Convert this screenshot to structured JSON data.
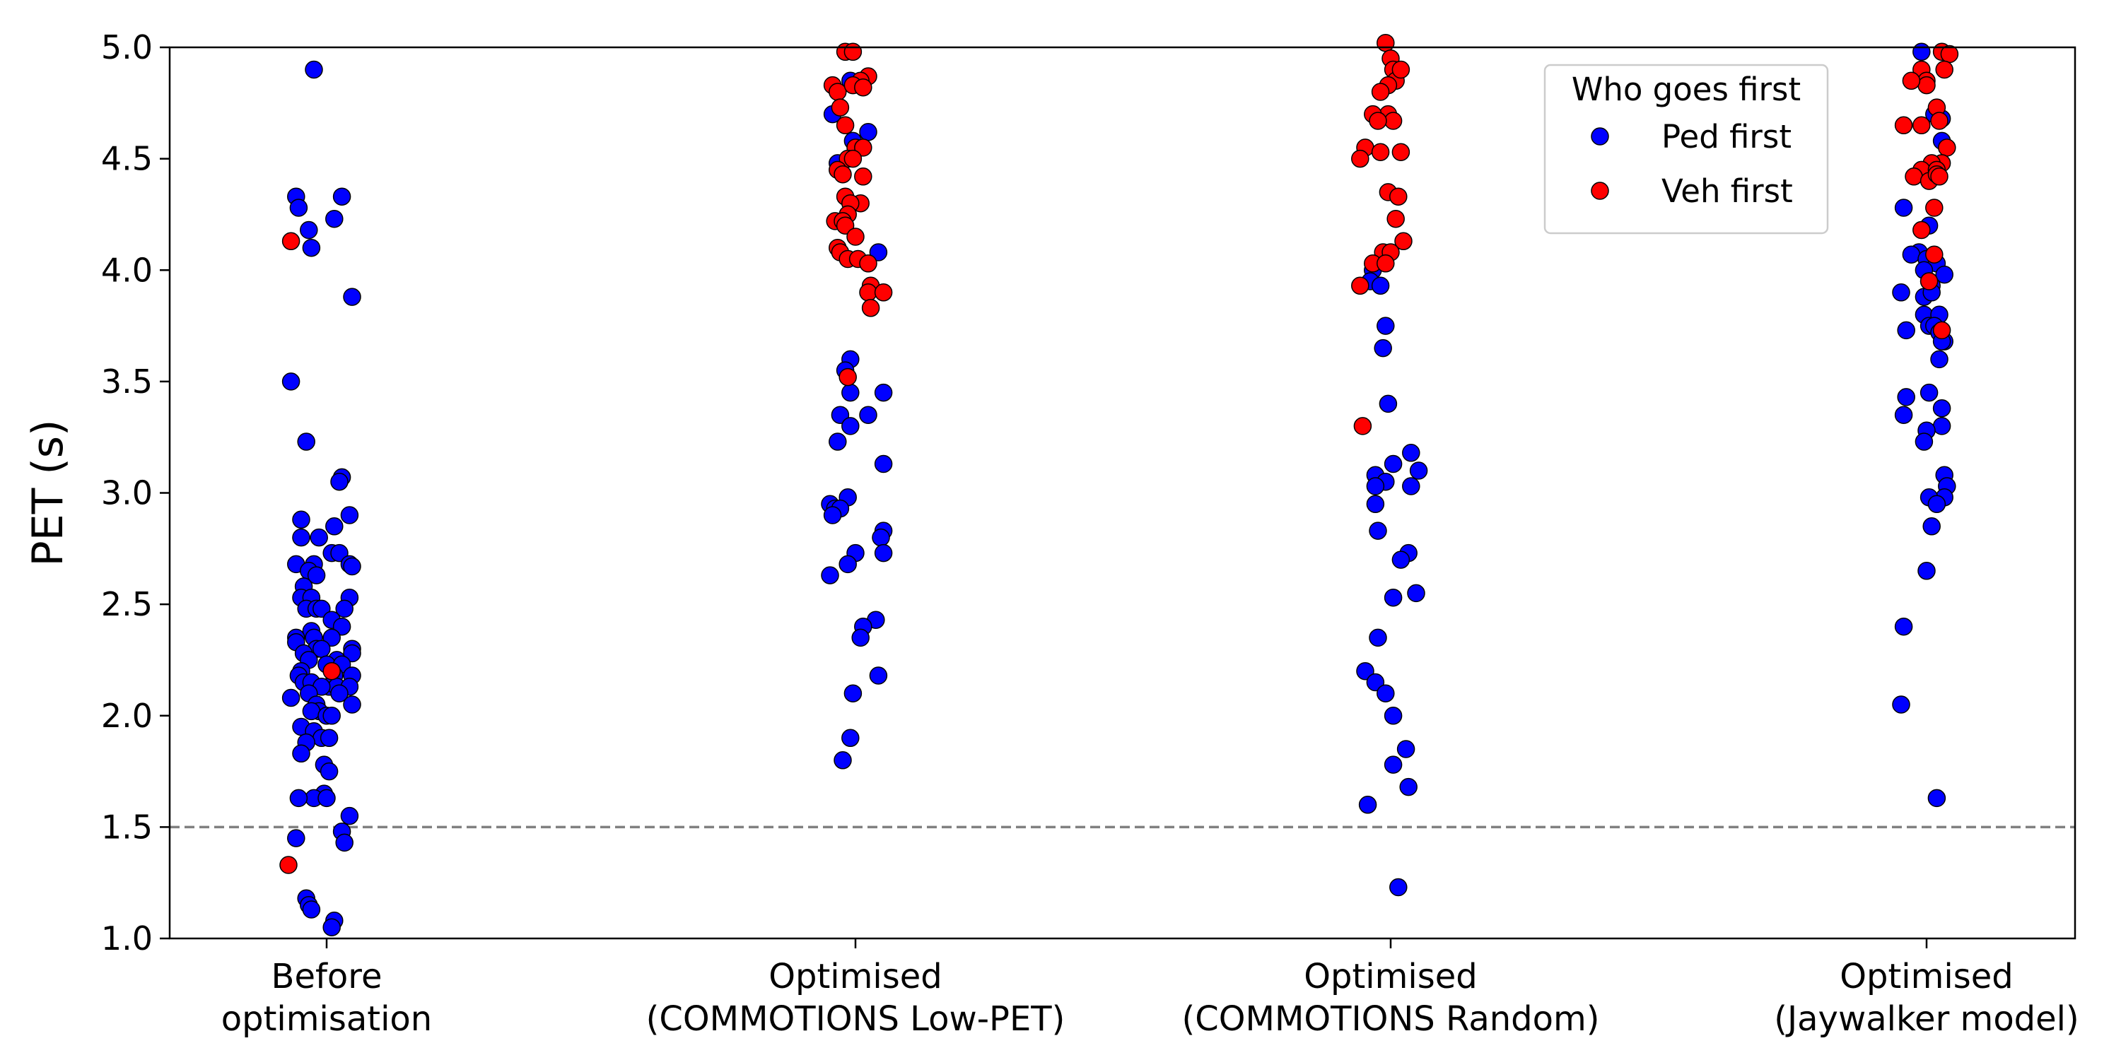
{
  "chart_data": {
    "type": "scatter",
    "title": "",
    "xlabel": "",
    "ylabel": "PET (s)",
    "ylim": [
      1.0,
      5.0
    ],
    "yticks": [
      1.0,
      1.5,
      2.0,
      2.5,
      3.0,
      3.5,
      4.0,
      4.5,
      5.0
    ],
    "ytick_labels": [
      "1.0",
      "1.5",
      "2.0",
      "2.5",
      "3.0",
      "3.5",
      "4.0",
      "4.5",
      "5.0"
    ],
    "categories": [
      [
        "Before",
        "optimisation"
      ],
      [
        "Optimised",
        "(COMMOTIONS Low-PET)"
      ],
      [
        "Optimised",
        "(COMMOTIONS Random)"
      ],
      [
        "Optimised",
        "(Jaywalker model)"
      ]
    ],
    "reference_line": {
      "y": 1.5,
      "style": "dashed",
      "color": "#808080"
    },
    "legend": {
      "title": "Who goes first",
      "position": "top-right",
      "entries": [
        {
          "name": "Ped first",
          "color": "#0000ff"
        },
        {
          "name": "Veh first",
          "color": "#ff0000"
        }
      ]
    },
    "series": [
      {
        "name": "Ped first",
        "color": "#0000ff",
        "points": [
          [
            -0.05,
            4.9
          ],
          [
            -0.12,
            4.33
          ],
          [
            -0.11,
            4.28
          ],
          [
            -0.07,
            4.18
          ],
          [
            -0.06,
            4.1
          ],
          [
            0.03,
            4.23
          ],
          [
            0.06,
            4.33
          ],
          [
            0.1,
            3.88
          ],
          [
            -0.14,
            3.5
          ],
          [
            -0.08,
            3.23
          ],
          [
            0.06,
            3.07
          ],
          [
            0.05,
            3.05
          ],
          [
            0.09,
            2.9
          ],
          [
            -0.1,
            2.88
          ],
          [
            0.03,
            2.85
          ],
          [
            -0.1,
            2.8
          ],
          [
            -0.03,
            2.8
          ],
          [
            0.02,
            2.73
          ],
          [
            0.05,
            2.73
          ],
          [
            -0.12,
            2.68
          ],
          [
            -0.05,
            2.68
          ],
          [
            0.09,
            2.68
          ],
          [
            0.1,
            2.67
          ],
          [
            -0.07,
            2.65
          ],
          [
            -0.04,
            2.63
          ],
          [
            -0.09,
            2.58
          ],
          [
            -0.1,
            2.53
          ],
          [
            -0.06,
            2.53
          ],
          [
            0.09,
            2.53
          ],
          [
            -0.08,
            2.48
          ],
          [
            -0.04,
            2.48
          ],
          [
            -0.02,
            2.48
          ],
          [
            0.07,
            2.48
          ],
          [
            0.02,
            2.43
          ],
          [
            0.06,
            2.4
          ],
          [
            -0.06,
            2.38
          ],
          [
            -0.05,
            2.35
          ],
          [
            -0.12,
            2.35
          ],
          [
            0.02,
            2.35
          ],
          [
            -0.12,
            2.33
          ],
          [
            -0.04,
            2.3
          ],
          [
            -0.02,
            2.3
          ],
          [
            0.1,
            2.3
          ],
          [
            -0.09,
            2.28
          ],
          [
            0.1,
            2.28
          ],
          [
            -0.07,
            2.25
          ],
          [
            0.04,
            2.25
          ],
          [
            0.0,
            2.23
          ],
          [
            0.06,
            2.23
          ],
          [
            -0.1,
            2.2
          ],
          [
            -0.11,
            2.18
          ],
          [
            0.03,
            2.18
          ],
          [
            0.1,
            2.18
          ],
          [
            -0.09,
            2.15
          ],
          [
            -0.06,
            2.15
          ],
          [
            0.01,
            2.13
          ],
          [
            0.04,
            2.13
          ],
          [
            -0.02,
            2.13
          ],
          [
            0.09,
            2.13
          ],
          [
            -0.07,
            2.1
          ],
          [
            0.05,
            2.1
          ],
          [
            -0.14,
            2.08
          ],
          [
            -0.04,
            2.05
          ],
          [
            0.1,
            2.05
          ],
          [
            -0.03,
            2.02
          ],
          [
            -0.06,
            2.02
          ],
          [
            0.0,
            2.0
          ],
          [
            0.02,
            2.0
          ],
          [
            -0.1,
            1.95
          ],
          [
            -0.05,
            1.93
          ],
          [
            -0.02,
            1.9
          ],
          [
            0.01,
            1.9
          ],
          [
            -0.08,
            1.88
          ],
          [
            -0.1,
            1.83
          ],
          [
            -0.01,
            1.78
          ],
          [
            0.01,
            1.75
          ],
          [
            -0.01,
            1.65
          ],
          [
            -0.05,
            1.63
          ],
          [
            -0.11,
            1.63
          ],
          [
            0.0,
            1.63
          ],
          [
            0.09,
            1.55
          ],
          [
            0.06,
            1.48
          ],
          [
            0.07,
            1.43
          ],
          [
            -0.12,
            1.45
          ],
          [
            -0.08,
            1.18
          ],
          [
            -0.07,
            1.15
          ],
          [
            -0.06,
            1.13
          ],
          [
            0.03,
            1.08
          ],
          [
            0.02,
            1.05
          ],
          [
            0.98,
            4.85
          ],
          [
            0.91,
            4.7
          ],
          [
            1.05,
            4.62
          ],
          [
            0.99,
            4.58
          ],
          [
            0.93,
            4.48
          ],
          [
            1.09,
            4.08
          ],
          [
            0.98,
            3.6
          ],
          [
            0.96,
            3.55
          ],
          [
            0.98,
            3.45
          ],
          [
            1.11,
            3.45
          ],
          [
            0.94,
            3.35
          ],
          [
            1.05,
            3.35
          ],
          [
            0.98,
            3.3
          ],
          [
            0.93,
            3.23
          ],
          [
            1.11,
            3.13
          ],
          [
            0.97,
            2.98
          ],
          [
            0.9,
            2.95
          ],
          [
            0.92,
            2.93
          ],
          [
            0.94,
            2.93
          ],
          [
            0.91,
            2.9
          ],
          [
            1.11,
            2.83
          ],
          [
            1.1,
            2.8
          ],
          [
            1.11,
            2.73
          ],
          [
            1.0,
            2.73
          ],
          [
            0.97,
            2.68
          ],
          [
            0.9,
            2.63
          ],
          [
            1.08,
            2.43
          ],
          [
            1.03,
            2.4
          ],
          [
            1.02,
            2.35
          ],
          [
            1.09,
            2.18
          ],
          [
            0.99,
            2.1
          ],
          [
            0.98,
            1.9
          ],
          [
            0.95,
            1.8
          ],
          [
            1.93,
            4.0
          ],
          [
            1.92,
            3.95
          ],
          [
            1.96,
            3.93
          ],
          [
            1.98,
            3.75
          ],
          [
            1.97,
            3.65
          ],
          [
            1.99,
            3.4
          ],
          [
            2.08,
            3.18
          ],
          [
            2.11,
            3.1
          ],
          [
            2.01,
            3.13
          ],
          [
            1.94,
            3.08
          ],
          [
            1.98,
            3.05
          ],
          [
            1.94,
            3.03
          ],
          [
            2.08,
            3.03
          ],
          [
            1.94,
            2.95
          ],
          [
            1.95,
            2.83
          ],
          [
            2.07,
            2.73
          ],
          [
            2.04,
            2.7
          ],
          [
            2.1,
            2.55
          ],
          [
            2.01,
            2.53
          ],
          [
            1.95,
            2.35
          ],
          [
            1.9,
            2.2
          ],
          [
            1.94,
            2.15
          ],
          [
            1.98,
            2.1
          ],
          [
            2.01,
            2.0
          ],
          [
            2.06,
            1.85
          ],
          [
            2.01,
            1.78
          ],
          [
            2.07,
            1.68
          ],
          [
            1.91,
            1.6
          ],
          [
            2.03,
            1.23
          ],
          [
            2.98,
            4.98
          ],
          [
            3.03,
            4.7
          ],
          [
            3.06,
            4.68
          ],
          [
            3.06,
            4.58
          ],
          [
            2.91,
            4.28
          ],
          [
            3.01,
            4.2
          ],
          [
            2.97,
            4.08
          ],
          [
            2.94,
            4.07
          ],
          [
            3.0,
            4.05
          ],
          [
            3.04,
            4.03
          ],
          [
            2.99,
            4.0
          ],
          [
            3.01,
            3.95
          ],
          [
            3.07,
            3.98
          ],
          [
            3.02,
            3.93
          ],
          [
            2.99,
            3.88
          ],
          [
            2.9,
            3.9
          ],
          [
            3.02,
            3.9
          ],
          [
            2.99,
            3.8
          ],
          [
            3.05,
            3.8
          ],
          [
            3.01,
            3.75
          ],
          [
            3.03,
            3.75
          ],
          [
            3.05,
            3.72
          ],
          [
            2.92,
            3.73
          ],
          [
            3.07,
            3.68
          ],
          [
            3.06,
            3.68
          ],
          [
            3.05,
            3.6
          ],
          [
            2.92,
            3.43
          ],
          [
            3.01,
            3.45
          ],
          [
            2.91,
            3.35
          ],
          [
            3.06,
            3.38
          ],
          [
            3.06,
            3.3
          ],
          [
            3.0,
            3.28
          ],
          [
            2.99,
            3.23
          ],
          [
            3.07,
            3.08
          ],
          [
            3.08,
            3.03
          ],
          [
            3.07,
            2.98
          ],
          [
            3.01,
            2.98
          ],
          [
            3.04,
            2.95
          ],
          [
            3.02,
            2.85
          ],
          [
            3.0,
            2.65
          ],
          [
            2.91,
            2.4
          ],
          [
            2.9,
            2.05
          ],
          [
            3.04,
            1.63
          ]
        ]
      },
      {
        "name": "Veh first",
        "color": "#ff0000",
        "points": [
          [
            -0.14,
            4.13
          ],
          [
            0.02,
            2.2
          ],
          [
            -0.15,
            1.33
          ],
          [
            0.96,
            4.98
          ],
          [
            0.99,
            4.98
          ],
          [
            0.91,
            4.83
          ],
          [
            0.93,
            4.8
          ],
          [
            1.05,
            4.87
          ],
          [
            1.02,
            4.85
          ],
          [
            0.99,
            4.83
          ],
          [
            1.03,
            4.82
          ],
          [
            0.94,
            4.73
          ],
          [
            0.96,
            4.65
          ],
          [
            1.0,
            4.55
          ],
          [
            1.03,
            4.55
          ],
          [
            0.97,
            4.5
          ],
          [
            0.99,
            4.5
          ],
          [
            0.93,
            4.45
          ],
          [
            0.95,
            4.43
          ],
          [
            1.03,
            4.42
          ],
          [
            1.02,
            4.3
          ],
          [
            0.96,
            4.33
          ],
          [
            0.98,
            4.3
          ],
          [
            0.97,
            4.25
          ],
          [
            0.92,
            4.22
          ],
          [
            0.95,
            4.22
          ],
          [
            0.96,
            4.2
          ],
          [
            1.0,
            4.15
          ],
          [
            0.93,
            4.1
          ],
          [
            0.94,
            4.08
          ],
          [
            0.97,
            4.05
          ],
          [
            1.01,
            4.05
          ],
          [
            1.05,
            4.03
          ],
          [
            1.06,
            3.93
          ],
          [
            1.05,
            3.9
          ],
          [
            1.06,
            3.83
          ],
          [
            1.11,
            3.9
          ],
          [
            0.97,
            3.52
          ],
          [
            1.98,
            5.02
          ],
          [
            2.0,
            4.95
          ],
          [
            2.01,
            4.9
          ],
          [
            2.02,
            4.85
          ],
          [
            1.99,
            4.83
          ],
          [
            2.04,
            4.9
          ],
          [
            1.96,
            4.8
          ],
          [
            1.99,
            4.7
          ],
          [
            2.01,
            4.67
          ],
          [
            1.93,
            4.7
          ],
          [
            1.95,
            4.67
          ],
          [
            1.9,
            4.55
          ],
          [
            1.88,
            4.5
          ],
          [
            2.04,
            4.53
          ],
          [
            1.96,
            4.53
          ],
          [
            1.99,
            4.35
          ],
          [
            2.03,
            4.33
          ],
          [
            2.02,
            4.23
          ],
          [
            2.05,
            4.13
          ],
          [
            1.97,
            4.08
          ],
          [
            2.0,
            4.08
          ],
          [
            1.93,
            4.03
          ],
          [
            1.98,
            4.03
          ],
          [
            1.88,
            3.93
          ],
          [
            1.89,
            3.3
          ],
          [
            3.06,
            4.98
          ],
          [
            3.09,
            4.97
          ],
          [
            3.07,
            4.9
          ],
          [
            2.98,
            4.9
          ],
          [
            3.0,
            4.85
          ],
          [
            3.0,
            4.83
          ],
          [
            2.94,
            4.85
          ],
          [
            3.04,
            4.73
          ],
          [
            2.91,
            4.65
          ],
          [
            2.98,
            4.65
          ],
          [
            3.05,
            4.67
          ],
          [
            3.08,
            4.55
          ],
          [
            3.06,
            4.48
          ],
          [
            3.02,
            4.48
          ],
          [
            2.98,
            4.45
          ],
          [
            3.04,
            4.45
          ],
          [
            2.95,
            4.42
          ],
          [
            3.01,
            4.4
          ],
          [
            3.04,
            4.43
          ],
          [
            3.05,
            4.42
          ],
          [
            3.03,
            4.28
          ],
          [
            2.98,
            4.18
          ],
          [
            3.03,
            4.07
          ],
          [
            3.01,
            3.95
          ],
          [
            3.06,
            3.73
          ]
        ]
      }
    ]
  }
}
